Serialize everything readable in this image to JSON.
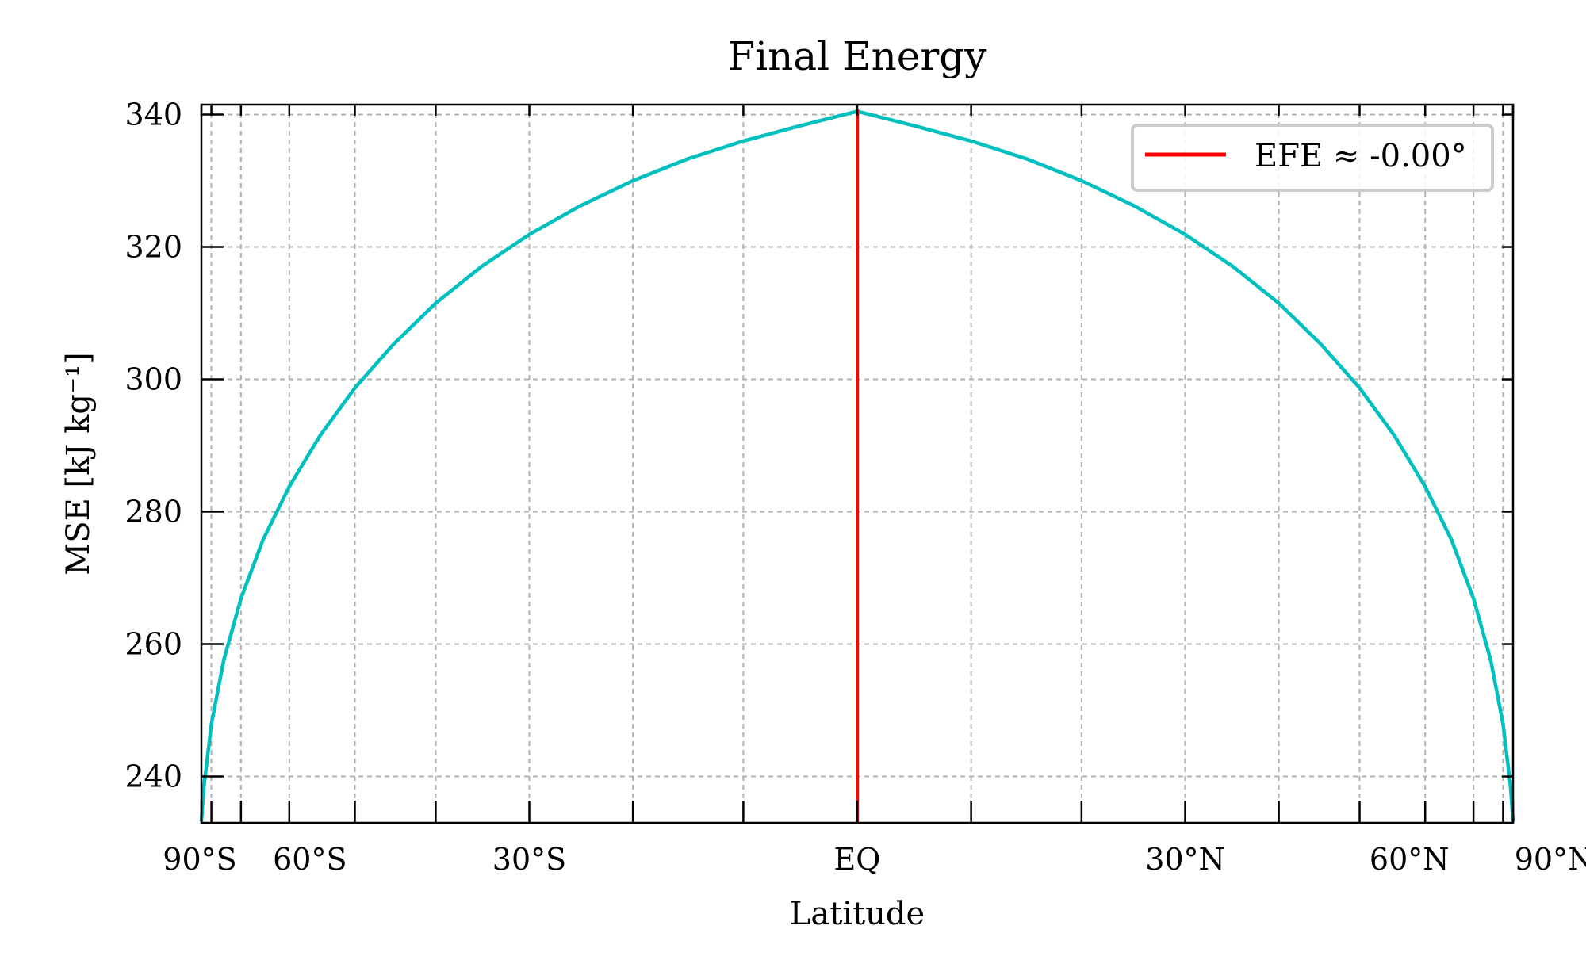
{
  "chart_data": {
    "type": "line",
    "title": "Final Energy",
    "xlabel": "Latitude",
    "ylabel": "MSE [kJ kg⁻¹]",
    "xaxis_scale": "sine of latitude",
    "xlim": [
      -90,
      90
    ],
    "ylim": [
      233,
      341.5
    ],
    "x_ticks": [
      {
        "value": -90,
        "label": "90°S"
      },
      {
        "value": -60,
        "label": "60°S"
      },
      {
        "value": -30,
        "label": "30°S"
      },
      {
        "value": 0,
        "label": "EQ"
      },
      {
        "value": 30,
        "label": "30°N"
      },
      {
        "value": 60,
        "label": "60°N"
      },
      {
        "value": 90,
        "label": "90°N"
      }
    ],
    "x_minor_ticks": [
      -80,
      -70,
      -50,
      -40,
      -20,
      -10,
      10,
      20,
      40,
      50,
      70,
      80
    ],
    "y_ticks": [
      240,
      260,
      280,
      300,
      320,
      340
    ],
    "grid": true,
    "legend_position": "top-right",
    "series": [
      {
        "name": "",
        "color": "#00bfbf",
        "x": [
          -90,
          -85,
          -80,
          -75,
          -70,
          -65,
          -60,
          -55,
          -50,
          -45,
          -40,
          -35,
          -30,
          -25,
          -20,
          -15,
          -10,
          -5,
          0,
          5,
          10,
          15,
          20,
          25,
          30,
          35,
          40,
          45,
          50,
          55,
          60,
          65,
          70,
          75,
          80,
          85,
          90
        ],
        "y": [
          233.2,
          238.4,
          247.9,
          257.6,
          266.9,
          275.7,
          283.8,
          291.5,
          298.7,
          305.3,
          311.5,
          317.0,
          321.9,
          326.2,
          330.0,
          333.3,
          336.0,
          338.3,
          340.5,
          338.3,
          336.0,
          333.3,
          330.0,
          326.2,
          321.9,
          317.0,
          311.5,
          305.3,
          298.7,
          291.5,
          283.8,
          275.7,
          266.9,
          257.6,
          247.9,
          238.4,
          233.2
        ]
      }
    ],
    "vertical_lines": [
      {
        "name": "EFE ≈ -0.00°",
        "x": 0,
        "color": "#ff0000"
      }
    ]
  }
}
